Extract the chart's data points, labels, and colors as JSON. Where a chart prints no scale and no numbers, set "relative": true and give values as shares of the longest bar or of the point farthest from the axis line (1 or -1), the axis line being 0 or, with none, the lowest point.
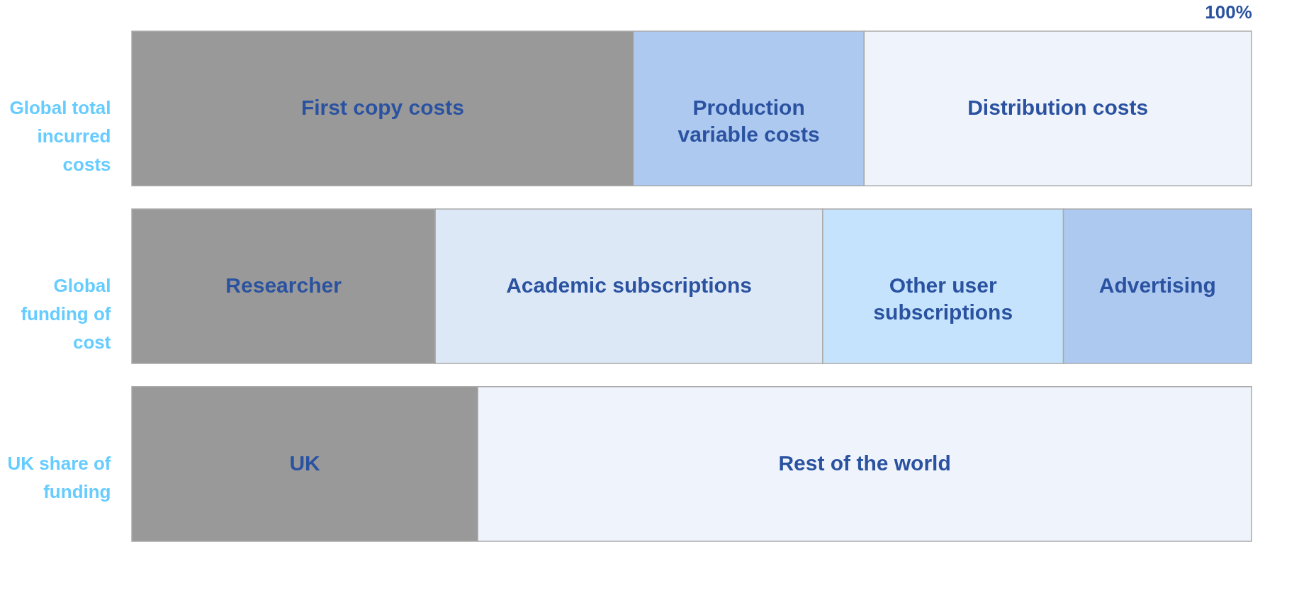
{
  "chart_data": {
    "type": "bar",
    "orientation": "horizontal",
    "stacked": true,
    "relative": true,
    "categories": [
      "Global total incurred costs",
      "Global funding of cost",
      "UK share of funding"
    ],
    "series": [
      {
        "name": "First copy costs",
        "color": "#999999",
        "values": [
          0.448,
          null,
          null
        ]
      },
      {
        "name": "Production variable costs",
        "color": "#adc9f0",
        "values": [
          0.206,
          null,
          null
        ]
      },
      {
        "name": "Distribution costs",
        "color": "#eff4fc",
        "values": [
          0.346,
          null,
          null
        ]
      },
      {
        "name": "Researcher",
        "color": "#999999",
        "values": [
          null,
          0.271,
          null
        ]
      },
      {
        "name": "Academic subscriptions",
        "color": "#dde8f7",
        "values": [
          null,
          0.346,
          null
        ]
      },
      {
        "name": "Other user subscriptions",
        "color": "#c5e3fc",
        "values": [
          null,
          0.215,
          null
        ]
      },
      {
        "name": "Advertising",
        "color": "#adc9f0",
        "values": [
          null,
          0.168,
          null
        ]
      },
      {
        "name": "UK",
        "color": "#999999",
        "values": [
          null,
          null,
          0.309
        ]
      },
      {
        "name": "Rest of the world",
        "color": "#eff4fc",
        "values": [
          null,
          null,
          0.691
        ]
      }
    ],
    "annotations": [
      "100%"
    ]
  }
}
